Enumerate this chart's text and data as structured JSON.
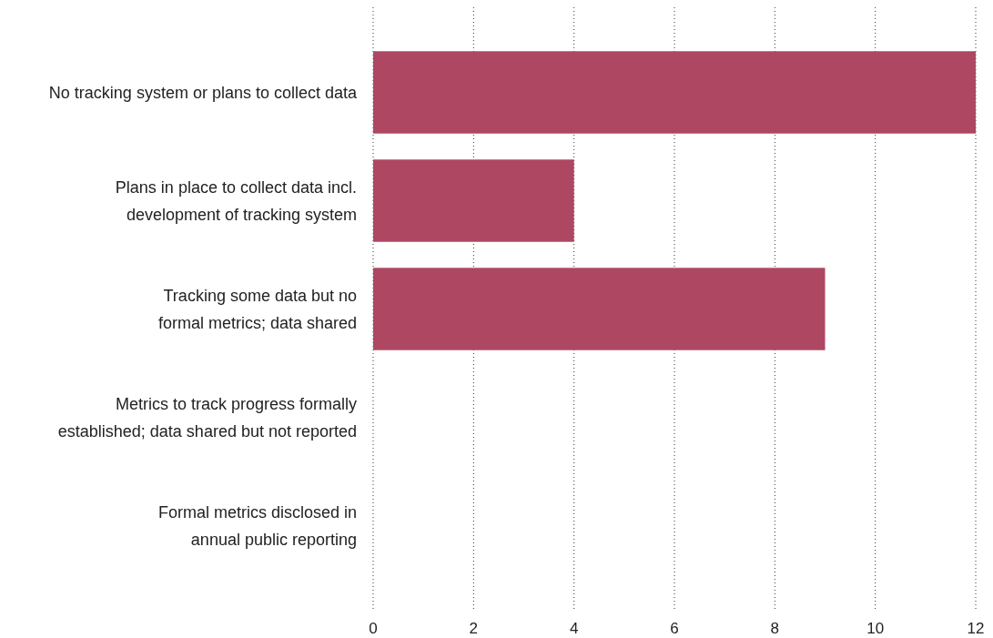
{
  "chart_data": {
    "type": "bar",
    "orientation": "horizontal",
    "categories": [
      "No tracking system or plans to collect data",
      "Plans in place to collect data incl.\ndevelopment of tracking system",
      "Tracking some data but no\nformal metrics; data shared",
      "Metrics to track progress formally\nestablished; data shared but not reported",
      "Formal metrics disclosed in\nannual public reporting"
    ],
    "values": [
      12,
      4,
      9,
      0,
      0
    ],
    "color": "#ae4762",
    "xlim": [
      0,
      12
    ],
    "xticks": [
      0,
      2,
      4,
      6,
      8,
      10,
      12
    ],
    "grid": "x"
  }
}
